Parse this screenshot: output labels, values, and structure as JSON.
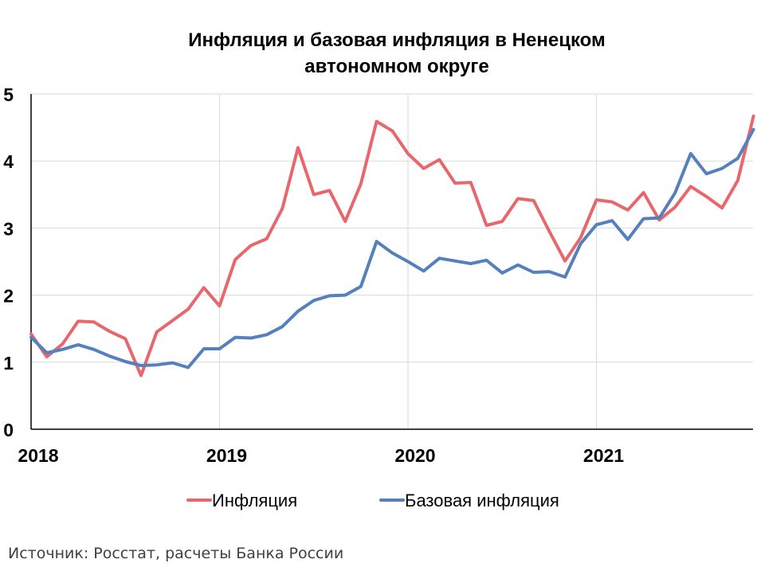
{
  "chart_data": {
    "type": "line",
    "title_lines": [
      "Инфляция и базовая инфляция в Ненецком",
      "автономном округе"
    ],
    "x_start": 2018,
    "months_per_year": 12,
    "x_range_months": [
      0,
      46
    ],
    "x_ticks": [
      {
        "month": 0,
        "label": "2018"
      },
      {
        "month": 12,
        "label": "2019"
      },
      {
        "month": 24,
        "label": "2020"
      },
      {
        "month": 36,
        "label": "2021"
      }
    ],
    "ylim": [
      0,
      5
    ],
    "y_ticks": [
      0,
      1,
      2,
      3,
      4,
      5
    ],
    "grid": {
      "horizontal": true,
      "vertical": true
    },
    "legend_position": "bottom",
    "series": [
      {
        "name": "Инфляция",
        "color": "#e8676d",
        "values": [
          1.42,
          1.08,
          1.27,
          1.61,
          1.6,
          1.46,
          1.35,
          0.8,
          1.45,
          1.62,
          1.79,
          2.11,
          1.84,
          2.53,
          2.74,
          2.84,
          3.29,
          4.2,
          3.5,
          3.56,
          3.1,
          3.66,
          4.59,
          4.45,
          4.11,
          3.89,
          4.02,
          3.67,
          3.68,
          3.04,
          3.1,
          3.44,
          3.41,
          2.95,
          2.51,
          2.86,
          3.42,
          3.39,
          3.27,
          3.53,
          3.12,
          3.31,
          3.62,
          3.47,
          3.3,
          3.71,
          4.67
        ]
      },
      {
        "name": "Базовая инфляция",
        "color": "#5580bc",
        "values": [
          1.37,
          1.14,
          1.19,
          1.26,
          1.19,
          1.09,
          1.01,
          0.95,
          0.96,
          0.99,
          0.92,
          1.2,
          1.2,
          1.37,
          1.36,
          1.41,
          1.53,
          1.76,
          1.92,
          1.99,
          2.0,
          2.13,
          2.8,
          2.63,
          2.5,
          2.36,
          2.55,
          2.51,
          2.47,
          2.52,
          2.33,
          2.45,
          2.34,
          2.35,
          2.27,
          2.77,
          3.05,
          3.11,
          2.83,
          3.14,
          3.15,
          3.52,
          4.11,
          3.81,
          3.89,
          4.04,
          4.47
        ]
      }
    ],
    "source": "Источник: Росстат, расчеты Банка России"
  }
}
